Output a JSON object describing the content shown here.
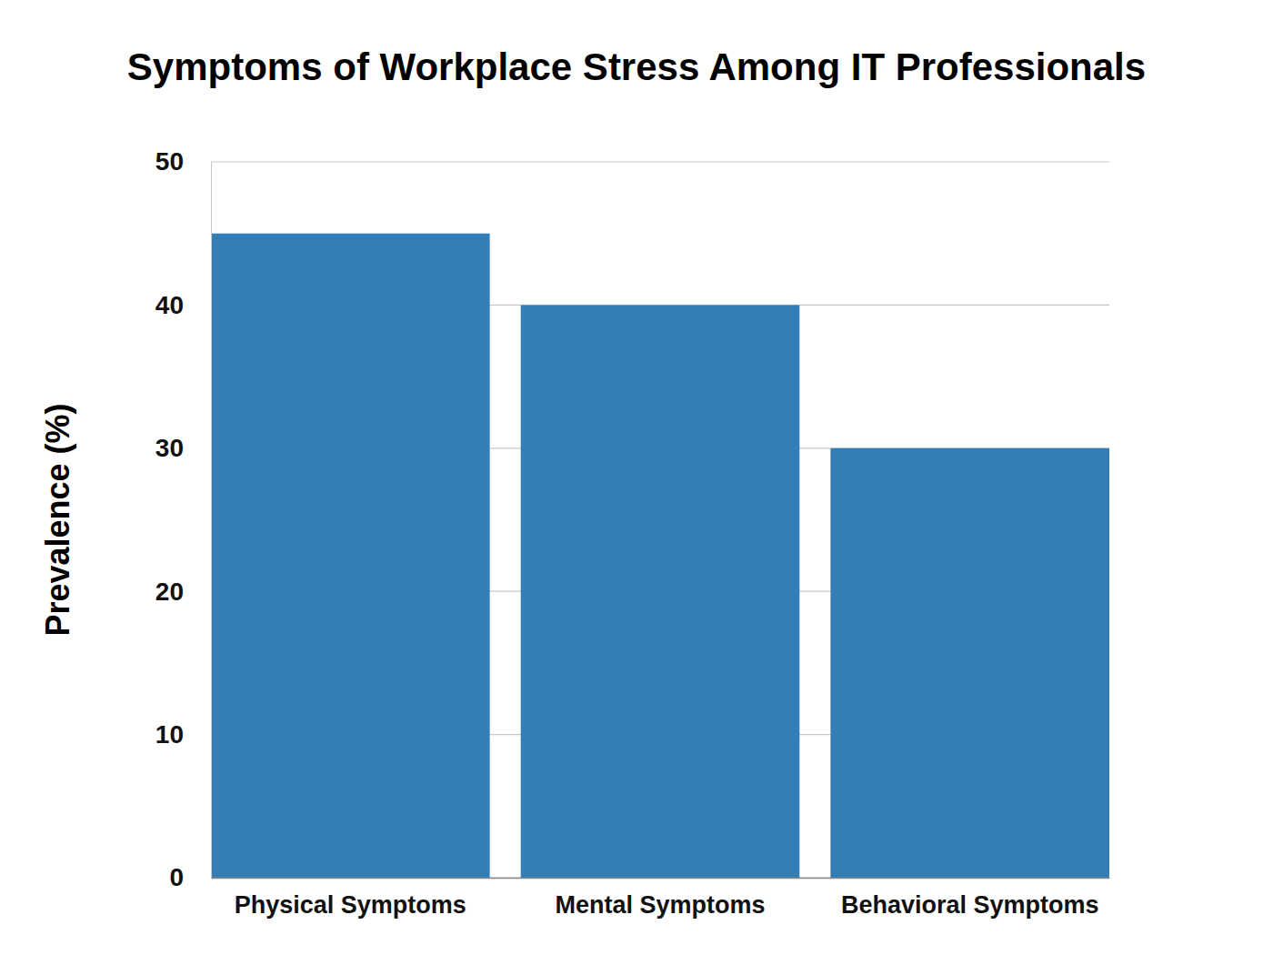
{
  "chart_data": {
    "type": "bar",
    "title": "Symptoms of Workplace Stress Among IT Professionals",
    "ylabel": "Prevalence (%)",
    "categories": [
      "Physical Symptoms",
      "Mental Symptoms",
      "Behavioral Symptoms"
    ],
    "values": [
      45,
      40,
      30
    ],
    "color": "#337eb6",
    "ylim": [
      0,
      50
    ],
    "yticks": [
      0,
      10,
      20,
      30,
      40,
      50
    ],
    "grid": true
  }
}
